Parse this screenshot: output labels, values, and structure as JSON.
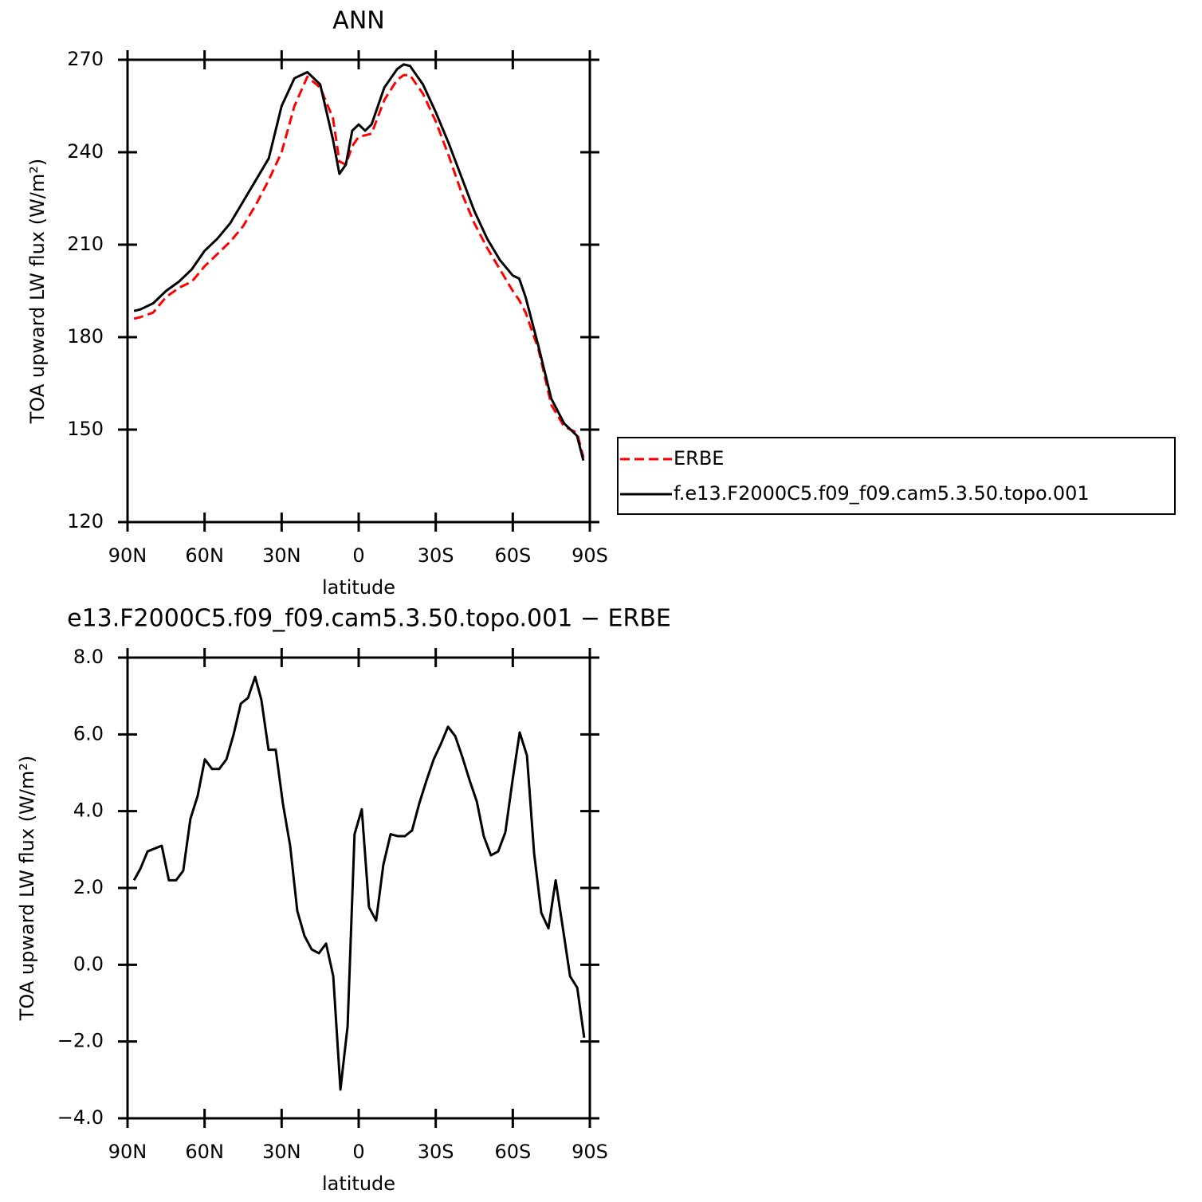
{
  "chart_data": [
    {
      "type": "line",
      "title": "ANN",
      "xlabel": "latitude",
      "ylabel": "TOA upward LW flux (W/m²)",
      "x": [
        87.5,
        85,
        80,
        75,
        70,
        65,
        60,
        55,
        50,
        45,
        40,
        35,
        30,
        25,
        20,
        15,
        10,
        7.5,
        5,
        2.5,
        0,
        -2.5,
        -5,
        -10,
        -15,
        -17.5,
        -20,
        -25,
        -30,
        -35,
        -40,
        -45,
        -50,
        -55,
        -60,
        -62.5,
        -65,
        -70,
        -75,
        -80,
        -85,
        -87.5
      ],
      "series": [
        {
          "name": "ERBE",
          "color": "#ff0000",
          "linestyle": "dashed",
          "values": [
            186,
            186.5,
            188,
            193,
            196,
            198,
            203,
            207,
            211,
            216,
            223,
            231,
            240,
            255,
            264.5,
            261,
            251,
            237,
            236,
            242,
            245,
            245.5,
            246,
            257,
            263.5,
            265,
            265,
            259,
            250,
            239,
            227,
            217,
            209,
            202,
            195,
            192,
            188,
            176,
            158,
            151,
            149,
            141
          ]
        },
        {
          "name": "f.e13.F2000C5.f09_f09.cam5.3.50.topo.001",
          "color": "#000000",
          "linestyle": "solid",
          "values": [
            188.5,
            189,
            191,
            195,
            198,
            202,
            208,
            212,
            217,
            224,
            231,
            238,
            255,
            264,
            266,
            262,
            244,
            233,
            236,
            247,
            249,
            247,
            249,
            261,
            267,
            268.5,
            268,
            262,
            253,
            243,
            232,
            221,
            212,
            205,
            200,
            199,
            193,
            177,
            160,
            152,
            148,
            140
          ]
        }
      ],
      "xlim": [
        90,
        -90
      ],
      "xticks": [
        {
          "value": 90,
          "label": "90N"
        },
        {
          "value": 60,
          "label": "60N"
        },
        {
          "value": 30,
          "label": "30N"
        },
        0,
        {
          "value": -30,
          "label": "30S"
        },
        {
          "value": -60,
          "label": "60S"
        },
        {
          "value": -90,
          "label": "90S"
        }
      ],
      "ylim": [
        120,
        270
      ],
      "yticks": [
        120,
        150,
        180,
        210,
        240,
        270
      ],
      "legend": "right"
    },
    {
      "type": "line",
      "title": "e13.F2000C5.f09_f09.cam5.3.50.topo.001 − ERBE",
      "xlabel": "latitude",
      "ylabel": "TOA upward LW flux (W/m²)",
      "x": [
        87.5,
        85,
        82.2,
        76.7,
        73.9,
        71.1,
        68.3,
        65.5,
        62.7,
        59.9,
        57.1,
        54.3,
        51.5,
        48.7,
        45.9,
        43.1,
        40.3,
        37.9,
        35.1,
        32.3,
        29.5,
        26.7,
        23.9,
        21.1,
        18.3,
        15.5,
        12.7,
        9.9,
        7.1,
        4.3,
        1.6,
        -1.2,
        -4,
        -6.8,
        -9.6,
        -12.4,
        -15.2,
        -18,
        -20.8,
        -23.6,
        -26.4,
        -29.2,
        -32,
        -34.8,
        -37.6,
        -40.4,
        -43.2,
        -46,
        -48.7,
        -51.5,
        -54.3,
        -57.1,
        -59.9,
        -62.7,
        -65.5,
        -68.3,
        -71.1,
        -73.9,
        -76.7,
        -79.5,
        -82.3,
        -85.1,
        -87.8
      ],
      "values": [
        2.2,
        2.5,
        2.95,
        3.1,
        2.2,
        2.2,
        2.45,
        3.8,
        4.4,
        5.35,
        5.1,
        5.1,
        5.35,
        6.0,
        6.8,
        6.95,
        7.5,
        6.9,
        5.6,
        5.6,
        4.2,
        3.1,
        1.4,
        0.75,
        0.4,
        0.3,
        0.55,
        -0.3,
        -3.25,
        -1.6,
        3.4,
        4.05,
        1.5,
        1.15,
        2.6,
        3.4,
        3.35,
        3.35,
        3.5,
        4.2,
        4.8,
        5.35,
        5.75,
        6.2,
        5.95,
        5.4,
        4.8,
        4.25,
        3.35,
        2.85,
        2.95,
        3.45,
        4.8,
        6.05,
        5.45,
        2.9,
        1.35,
        0.95,
        2.2,
        0.95,
        -0.3,
        -0.6,
        -1.9
      ],
      "color": "#000000",
      "xlim": [
        90,
        -90
      ],
      "xticks": [
        {
          "value": 90,
          "label": "90N"
        },
        {
          "value": 60,
          "label": "60N"
        },
        {
          "value": 30,
          "label": "30N"
        },
        0,
        {
          "value": -30,
          "label": "30S"
        },
        {
          "value": -60,
          "label": "60S"
        },
        {
          "value": -90,
          "label": "90S"
        }
      ],
      "ylim": [
        -4,
        8
      ],
      "yticks": [
        {
          "value": -4,
          "label": "−4.0"
        },
        {
          "value": -2,
          "label": "−2.0"
        },
        {
          "value": 0,
          "label": "0.0"
        },
        {
          "value": 2,
          "label": "2.0"
        },
        {
          "value": 4,
          "label": "4.0"
        },
        {
          "value": 6,
          "label": "6.0"
        },
        {
          "value": 8,
          "label": "8.0"
        }
      ]
    }
  ]
}
